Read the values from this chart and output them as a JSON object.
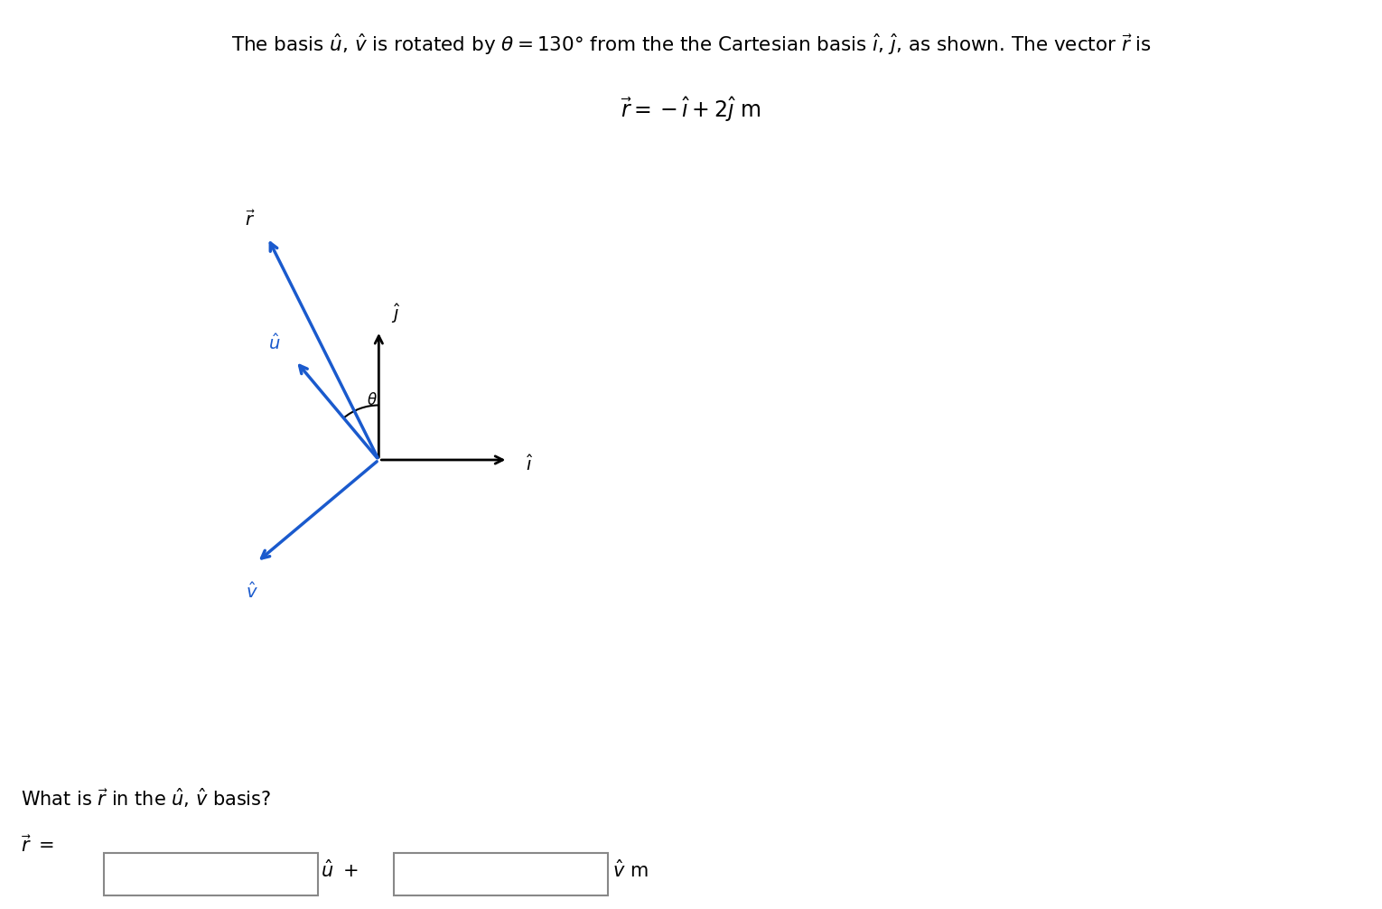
{
  "theta_deg": 130,
  "r_vec": [
    -1,
    2
  ],
  "plot_bg": "#dce8f0",
  "plot_border": "#aaaaaa",
  "arrow_color_black": "#000000",
  "arrow_color_blue": "#1a5acd",
  "font_color": "#000000",
  "basis_scale": 1.3,
  "r_display_scale": 2.5,
  "v_display_scale": 1.6
}
